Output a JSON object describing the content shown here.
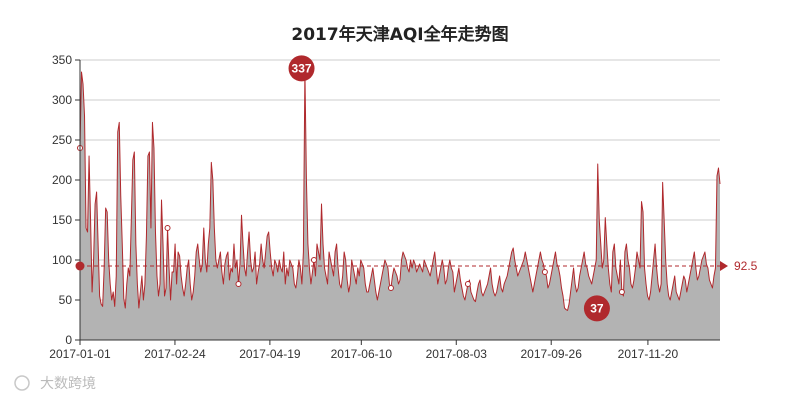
{
  "chart_data": {
    "type": "area",
    "title": "2017年天津AQI全年走势图",
    "xlabel": "",
    "ylabel": "",
    "x_ticks": [
      "2017-01-01",
      "2017-02-24",
      "2017-04-19",
      "2017-06-10",
      "2017-08-03",
      "2017-09-26",
      "2017-11-20"
    ],
    "y_ticks": [
      "0",
      "50",
      "100",
      "150",
      "200",
      "250",
      "300",
      "350"
    ],
    "ylim": [
      0,
      350
    ],
    "x_start": "2017-01-01",
    "x_end": "2017-12-31",
    "grid": "horizontal",
    "legend": "none",
    "average": 92.5,
    "average_label": "92.5",
    "max": {
      "date": "2017-05-07",
      "value": 337,
      "label": "337"
    },
    "min": {
      "date": "2017-10-22",
      "value": 37,
      "label": "37"
    },
    "colors": {
      "fill": "#b3b3b3",
      "line": "#b0292d",
      "marker": "#b0292d"
    },
    "series": [
      {
        "values": [
          240,
          335,
          320,
          280,
          140,
          135,
          230,
          150,
          60,
          100,
          170,
          185,
          120,
          55,
          45,
          42,
          90,
          165,
          160,
          100,
          70,
          50,
          60,
          42,
          80,
          260,
          272,
          180,
          120,
          52,
          40,
          70,
          90,
          80,
          150,
          225,
          235,
          120,
          70,
          40,
          60,
          80,
          50,
          70,
          130,
          230,
          235,
          140,
          272,
          240,
          135,
          80,
          55,
          70,
          175,
          120,
          55,
          65,
          140,
          90,
          50,
          85,
          85,
          120,
          70,
          110,
          105,
          80,
          65,
          55,
          70,
          90,
          100,
          70,
          50,
          60,
          80,
          110,
          120,
          100,
          85,
          95,
          140,
          100,
          85,
          120,
          140,
          222,
          200,
          140,
          100,
          90,
          100,
          110,
          85,
          70,
          95,
          105,
          110,
          75,
          90,
          85,
          120,
          90,
          100,
          70,
          95,
          156,
          120,
          90,
          80,
          110,
          135,
          100,
          85,
          90,
          110,
          70,
          85,
          95,
          120,
          100,
          90,
          110,
          130,
          135,
          110,
          90,
          80,
          100,
          95,
          85,
          100,
          90,
          85,
          110,
          70,
          90,
          80,
          100,
          95,
          90,
          70,
          65,
          80,
          100,
          90,
          70,
          110,
          337,
          200,
          120,
          90,
          70,
          85,
          100,
          80,
          120,
          110,
          100,
          170,
          120,
          90,
          80,
          70,
          110,
          100,
          90,
          80,
          110,
          120,
          90,
          70,
          65,
          80,
          110,
          100,
          75,
          60,
          70,
          100,
          90,
          80,
          70,
          90,
          80,
          100,
          95,
          90,
          70,
          60,
          60,
          70,
          80,
          90,
          75,
          60,
          50,
          60,
          70,
          80,
          90,
          100,
          95,
          90,
          70,
          65,
          80,
          90,
          85,
          80,
          70,
          75,
          100,
          110,
          105,
          100,
          90,
          85,
          100,
          90,
          100,
          95,
          85,
          90,
          95,
          90,
          85,
          100,
          95,
          90,
          85,
          80,
          90,
          100,
          110,
          90,
          70,
          80,
          90,
          100,
          90,
          70,
          75,
          90,
          100,
          90,
          85,
          60,
          70,
          80,
          90,
          75,
          65,
          55,
          50,
          60,
          70,
          75,
          60,
          55,
          50,
          48,
          60,
          70,
          75,
          60,
          55,
          60,
          65,
          70,
          80,
          90,
          70,
          60,
          55,
          60,
          70,
          80,
          65,
          60,
          70,
          75,
          80,
          90,
          100,
          110,
          115,
          100,
          90,
          80,
          85,
          90,
          95,
          100,
          110,
          100,
          90,
          80,
          70,
          60,
          70,
          80,
          90,
          100,
          110,
          100,
          95,
          85,
          80,
          65,
          70,
          80,
          90,
          100,
          110,
          95,
          90,
          80,
          65,
          55,
          40,
          38,
          37,
          45,
          60,
          75,
          90,
          70,
          60,
          65,
          80,
          90,
          100,
          110,
          95,
          90,
          80,
          75,
          70,
          80,
          90,
          100,
          220,
          150,
          120,
          90,
          100,
          153,
          120,
          90,
          70,
          60,
          110,
          120,
          90,
          80,
          70,
          100,
          60,
          55,
          110,
          120,
          100,
          90,
          70,
          65,
          75,
          90,
          110,
          100,
          90,
          173,
          160,
          90,
          70,
          55,
          50,
          60,
          80,
          100,
          120,
          90,
          70,
          60,
          70,
          197,
          150,
          100,
          70,
          55,
          50,
          60,
          70,
          80,
          60,
          55,
          50,
          60,
          70,
          80,
          75,
          60,
          70,
          80,
          90,
          100,
          110,
          90,
          75,
          80,
          90,
          100,
          105,
          110,
          95,
          90,
          75,
          70,
          65,
          80,
          90,
          205,
          215,
          195
        ]
      }
    ]
  },
  "watermark": "大数跨境"
}
